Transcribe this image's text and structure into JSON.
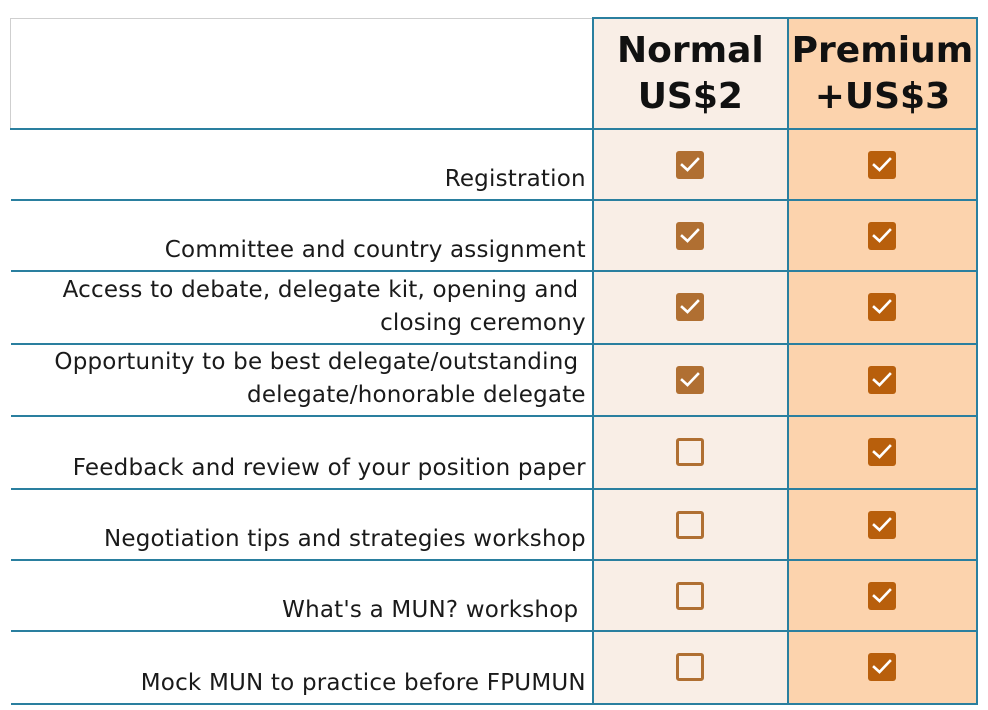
{
  "header": {
    "normal_name": "Normal",
    "normal_price": "US$2",
    "premium_name": "Premium",
    "premium_price": "+US$3"
  },
  "colors": {
    "grid": "#2a7f9f",
    "normal_bg": "#f9eee6",
    "premium_bg": "#fcd3ad",
    "check_normal": "#b06f32",
    "check_premium": "#b85f0c"
  },
  "rows": [
    {
      "feature_lines": [
        "Registration"
      ],
      "normal": true,
      "premium": true
    },
    {
      "feature_lines": [
        "Committee and country assignment"
      ],
      "normal": true,
      "premium": true
    },
    {
      "feature_lines": [
        "Access to debate, delegate kit, opening and ",
        "closing ceremony"
      ],
      "normal": true,
      "premium": true
    },
    {
      "feature_lines": [
        "Opportunity to be best delegate/outstanding ",
        "delegate/honorable delegate"
      ],
      "normal": true,
      "premium": true
    },
    {
      "feature_lines": [
        "Feedback and review of your position paper"
      ],
      "normal": false,
      "premium": true
    },
    {
      "feature_lines": [
        "Negotiation tips and strategies workshop"
      ],
      "normal": false,
      "premium": true
    },
    {
      "feature_lines": [
        "What's a MUN? workshop "
      ],
      "normal": false,
      "premium": true
    },
    {
      "feature_lines": [
        "Mock MUN to practice before FPUMUN"
      ],
      "normal": false,
      "premium": true
    }
  ]
}
